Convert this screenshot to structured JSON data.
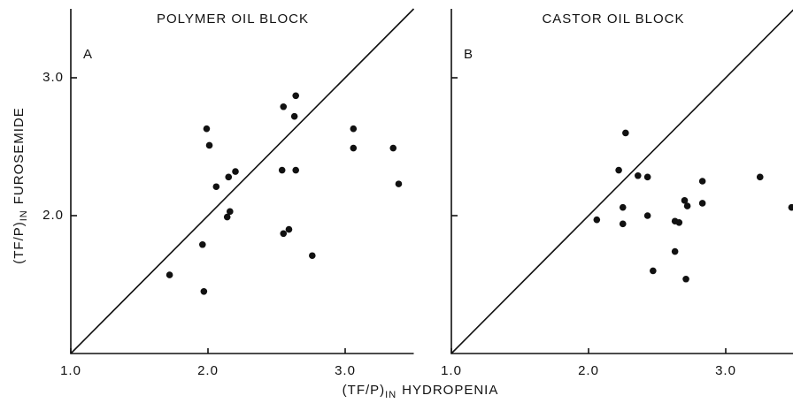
{
  "chart_data": [
    {
      "type": "scatter",
      "title": "POLYMER OIL BLOCK",
      "panel_label": "A",
      "color": "#111111",
      "diagonal": true,
      "y_label": {
        "main": "(TF/P)",
        "sub": "IN",
        "rest": "FUROSEMIDE"
      },
      "xlim": [
        1.0,
        3.5
      ],
      "ylim": [
        1.0,
        3.5
      ],
      "xticks": [
        {
          "value": 1,
          "label": "1.0"
        },
        {
          "value": 2,
          "label": "2.0"
        },
        {
          "value": 3,
          "label": "3.0"
        }
      ],
      "yticks": [
        {
          "value": 2,
          "label": "2.0"
        },
        {
          "value": 3,
          "label": "3.0"
        }
      ],
      "x": [
        1.72,
        1.97,
        1.96,
        1.99,
        2.01,
        2.06,
        2.15,
        2.2,
        2.16,
        2.14,
        2.55,
        2.64,
        2.63,
        2.54,
        2.55,
        2.59,
        2.64,
        2.76,
        3.06,
        3.06,
        3.35,
        3.39
      ],
      "values": [
        1.57,
        1.45,
        1.79,
        2.63,
        2.51,
        2.21,
        2.28,
        2.32,
        2.03,
        1.99,
        2.79,
        2.87,
        2.72,
        2.33,
        1.87,
        1.9,
        2.33,
        1.71,
        2.63,
        2.49,
        2.49,
        2.23
      ]
    },
    {
      "type": "scatter",
      "title": "CASTOR OIL BLOCK",
      "panel_label": "B",
      "color": "#111111",
      "diagonal": true,
      "xlim": [
        1.0,
        3.5
      ],
      "ylim": [
        1.0,
        3.5
      ],
      "xticks": [
        {
          "value": 1,
          "label": "1.0"
        },
        {
          "value": 2,
          "label": "2.0"
        },
        {
          "value": 3,
          "label": "3.0"
        }
      ],
      "yticks": [
        2,
        3
      ],
      "x": [
        2.27,
        2.06,
        2.22,
        2.25,
        2.25,
        2.36,
        2.43,
        2.43,
        2.47,
        2.63,
        2.66,
        2.63,
        2.7,
        2.72,
        2.71,
        2.83,
        2.83,
        3.25,
        3.48
      ],
      "values": [
        2.6,
        1.97,
        2.33,
        2.06,
        1.94,
        2.29,
        2.28,
        2.0,
        1.6,
        1.96,
        1.95,
        1.74,
        2.11,
        2.07,
        1.54,
        2.25,
        2.09,
        2.28,
        2.06
      ]
    }
  ],
  "x_label": {
    "main": "(TF/P)",
    "sub": "IN",
    "rest": "HYDROPENIA"
  }
}
